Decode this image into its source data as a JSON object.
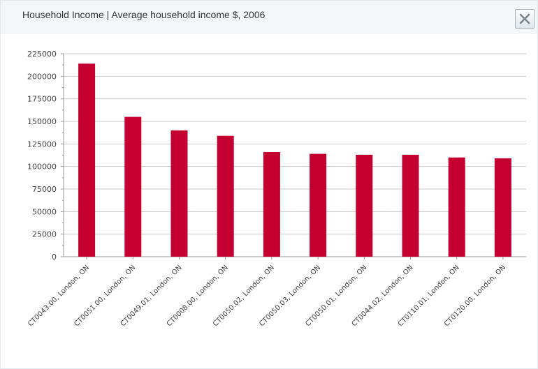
{
  "dialog": {
    "title": "Household Income | Average household income $, 2006",
    "close_icon": "close-icon"
  },
  "colors": {
    "bar": "#c3002f",
    "grid": "#c8c8c8",
    "axis": "#999999",
    "header_bg": "#f4f7f9"
  },
  "chart_data": {
    "type": "bar",
    "title": "Household Income | Average household income $, 2006",
    "xlabel": "",
    "ylabel": "",
    "ylim": [
      0,
      225000
    ],
    "yticks": [
      0,
      25000,
      50000,
      75000,
      100000,
      125000,
      150000,
      175000,
      200000,
      225000
    ],
    "grid": true,
    "legend": "none",
    "categories": [
      "CT0043.00, London, ON",
      "CT0051.00, London, ON",
      "CT0049.01, London, ON",
      "CT0008.00, London, ON",
      "CT0050.02, London, ON",
      "CT0050.03, London, ON",
      "CT0050.01, London, ON",
      "CT0044.02, London, ON",
      "CT0110.01, London, ON",
      "CT0120.00, London, ON"
    ],
    "values": [
      214000,
      155000,
      140000,
      134000,
      116000,
      114000,
      113000,
      113000,
      110000,
      109000
    ]
  }
}
